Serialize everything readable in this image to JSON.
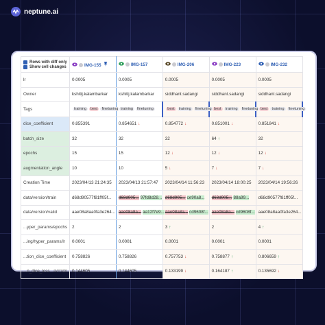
{
  "logo": "neptune.ai",
  "options": [
    "Rows with diff only",
    "Show cell changes"
  ],
  "columns": [
    {
      "name": "IMG-155",
      "icon": "#8b3fc4"
    },
    {
      "name": "IMG-157",
      "icon": "#2e9e5a"
    },
    {
      "name": "IMG-206",
      "icon": "#5a4a2a"
    },
    {
      "name": "IMG-223",
      "icon": "#8b3fc4"
    },
    {
      "name": "IMG-232",
      "icon": "#2f5fb3"
    }
  ],
  "rows": [
    {
      "label": "lr",
      "cells": [
        {
          "text": "0.0005"
        },
        {
          "text": "0.0005"
        },
        {
          "text": "0.0005"
        },
        {
          "text": "0.0005"
        },
        {
          "text": "0.0005"
        }
      ]
    },
    {
      "label": "Owner",
      "cells": [
        {
          "text": "kshitij.kalambarkar"
        },
        {
          "text": "kshitij.kalambarkar"
        },
        {
          "text": "siddhant.sadangi"
        },
        {
          "text": "siddhant.sadangi"
        },
        {
          "text": "siddhant.sadangi"
        }
      ]
    },
    {
      "label": "Tags",
      "cells": [
        {
          "tags": [
            "training",
            "best",
            "finetuning"
          ]
        },
        {
          "tags": [
            "training",
            "finetuning"
          ]
        },
        {
          "tags": [
            "best",
            "training",
            "finetuning"
          ]
        },
        {
          "tags": [
            "best",
            "training",
            "finetuning"
          ]
        },
        {
          "tags": [
            "best",
            "training",
            "finetuning"
          ]
        }
      ]
    },
    {
      "label": "dice_coefficient",
      "group": "blue",
      "cells": [
        {
          "text": "0.855391"
        },
        {
          "text": "0.854651",
          "arrow": "↓"
        },
        {
          "text": "0.854772",
          "arrow": "↓"
        },
        {
          "text": "0.851001",
          "arrow": "↓"
        },
        {
          "text": "0.851841",
          "arrow": "↓"
        }
      ]
    },
    {
      "label": "batch_size",
      "group": "green",
      "cells": [
        {
          "text": "32"
        },
        {
          "text": "32"
        },
        {
          "text": "32"
        },
        {
          "text": "64",
          "arrow": "↑"
        },
        {
          "text": "32"
        }
      ]
    },
    {
      "label": "epochs",
      "group": "green",
      "cells": [
        {
          "text": "15"
        },
        {
          "text": "15"
        },
        {
          "text": "12",
          "arrow": "↓"
        },
        {
          "text": "12",
          "arrow": "↓"
        },
        {
          "text": "12",
          "arrow": "↓"
        }
      ]
    },
    {
      "label": "augmentation_angle",
      "group": "green",
      "cells": [
        {
          "text": "10"
        },
        {
          "text": "10"
        },
        {
          "text": "5",
          "arrow": "↓"
        },
        {
          "text": "7",
          "arrow": "↓"
        },
        {
          "text": "7",
          "arrow": "↓"
        }
      ]
    },
    {
      "label": "Creation Time",
      "cells": [
        {
          "text": "2023/04/13 21:24:35"
        },
        {
          "text": "2023/04/13 21:57:47"
        },
        {
          "text": "2023/04/14 11:56:23"
        },
        {
          "text": "2023/04/14 18:00:25"
        },
        {
          "text": "2023/04/14 19:56:26"
        }
      ]
    },
    {
      "label": "data/version/train",
      "cells": [
        {
          "text": "d68d90577f81ff05f..."
        },
        {
          "old": "d68d905...",
          "new": "97fd8d28..."
        },
        {
          "old": "d68d905...",
          "new": "ce90a8..."
        },
        {
          "old": "d68d905...",
          "new": "88a99..."
        },
        {
          "text": "d68d90577f81ff05f..."
        }
      ]
    },
    {
      "label": "data/version/valid",
      "cells": [
        {
          "text": "aae08a8aa0fa3e264..."
        },
        {
          "old": "aae08a8a...",
          "new": "aa12f7e9..."
        },
        {
          "old": "aae08a8a...",
          "new": "cd9608f..."
        },
        {
          "old": "aae08a8a...",
          "new": "cd9608f..."
        },
        {
          "text": "aae08a8aa0fa3e264..."
        }
      ]
    },
    {
      "label": "...yper_params/epochs",
      "cells": [
        {
          "text": "2"
        },
        {
          "text": "2"
        },
        {
          "text": "3",
          "arrow": "↑"
        },
        {
          "text": "2"
        },
        {
          "text": "4",
          "arrow": "↑"
        }
      ]
    },
    {
      "label": "...ing/hyper_params/lr",
      "cells": [
        {
          "text": "0.0001"
        },
        {
          "text": "0.0001"
        },
        {
          "text": "0.0001"
        },
        {
          "text": "0.0001"
        },
        {
          "text": "0.0001"
        }
      ]
    },
    {
      "label": "...tion_dice_coefficient",
      "cells": [
        {
          "text": "0.758826"
        },
        {
          "text": "0.758826"
        },
        {
          "text": "0.757753",
          "arrow": "↓"
        },
        {
          "text": "0.758877",
          "arrow": "↑"
        },
        {
          "text": "0.806659",
          "arrow": "↑"
        }
      ]
    },
    {
      "label": "...n_dice_loss",
      "note": "average",
      "cells": [
        {
          "text": "0.144605"
        },
        {
          "text": "0.144605"
        },
        {
          "text": "0.133199",
          "arrow": "↓"
        },
        {
          "text": "0.164187",
          "arrow": "↑"
        },
        {
          "text": "0.135692",
          "arrow": "↓"
        }
      ]
    }
  ]
}
